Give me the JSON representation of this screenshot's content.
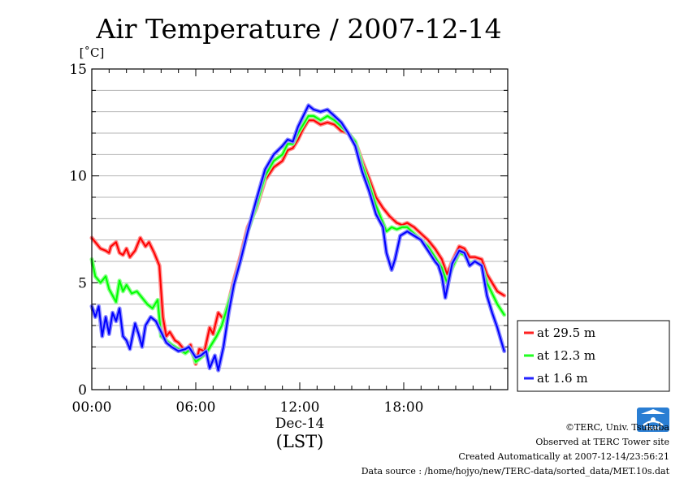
{
  "chart_data": {
    "type": "line",
    "title": "Air Temperature / 2007-12-14",
    "ylabel": "[˚C]",
    "xlabel": "(LST)",
    "xdate_label": "Dec-14",
    "ylim": [
      0,
      15
    ],
    "xlim": [
      0,
      24
    ],
    "yticks": [
      "0",
      "5",
      "10",
      "15"
    ],
    "xticks": [
      {
        "value": 0,
        "label": "00:00"
      },
      {
        "value": 6,
        "label": "06:00"
      },
      {
        "value": 12,
        "label": "12:00"
      },
      {
        "value": 18,
        "label": "18:00"
      }
    ],
    "grid": true,
    "legend_position": "right",
    "series": [
      {
        "name": "at 29.5 m",
        "color": "#ff0000",
        "points": [
          [
            0,
            7.1
          ],
          [
            0.5,
            6.6
          ],
          [
            0.8,
            6.5
          ],
          [
            1.0,
            6.4
          ],
          [
            1.1,
            6.7
          ],
          [
            1.4,
            6.9
          ],
          [
            1.6,
            6.4
          ],
          [
            1.8,
            6.3
          ],
          [
            2.0,
            6.6
          ],
          [
            2.2,
            6.2
          ],
          [
            2.5,
            6.5
          ],
          [
            2.8,
            7.1
          ],
          [
            3.1,
            6.7
          ],
          [
            3.3,
            6.9
          ],
          [
            3.6,
            6.4
          ],
          [
            3.9,
            5.8
          ],
          [
            4.1,
            3.4
          ],
          [
            4.3,
            2.5
          ],
          [
            4.5,
            2.7
          ],
          [
            4.8,
            2.3
          ],
          [
            5.0,
            2.2
          ],
          [
            5.4,
            1.8
          ],
          [
            5.7,
            2.1
          ],
          [
            6.0,
            1.2
          ],
          [
            6.2,
            1.9
          ],
          [
            6.5,
            1.8
          ],
          [
            6.8,
            2.9
          ],
          [
            7.0,
            2.6
          ],
          [
            7.3,
            3.6
          ],
          [
            7.6,
            3.3
          ],
          [
            7.9,
            4.1
          ],
          [
            8.2,
            5.1
          ],
          [
            8.6,
            6.3
          ],
          [
            9.0,
            7.6
          ],
          [
            9.5,
            8.5
          ],
          [
            10.0,
            9.8
          ],
          [
            10.5,
            10.4
          ],
          [
            11.0,
            10.7
          ],
          [
            11.3,
            11.2
          ],
          [
            11.6,
            11.3
          ],
          [
            11.9,
            11.7
          ],
          [
            12.2,
            12.2
          ],
          [
            12.5,
            12.6
          ],
          [
            12.8,
            12.6
          ],
          [
            13.2,
            12.4
          ],
          [
            13.6,
            12.5
          ],
          [
            14.0,
            12.4
          ],
          [
            14.4,
            12.1
          ],
          [
            14.8,
            12.0
          ],
          [
            15.2,
            11.6
          ],
          [
            15.6,
            10.7
          ],
          [
            16.0,
            9.9
          ],
          [
            16.4,
            9.0
          ],
          [
            16.8,
            8.5
          ],
          [
            17.2,
            8.1
          ],
          [
            17.6,
            7.8
          ],
          [
            17.9,
            7.7
          ],
          [
            18.2,
            7.8
          ],
          [
            18.6,
            7.6
          ],
          [
            19.0,
            7.3
          ],
          [
            19.4,
            7.0
          ],
          [
            19.8,
            6.6
          ],
          [
            20.2,
            6.1
          ],
          [
            20.5,
            5.4
          ],
          [
            20.8,
            6.0
          ],
          [
            21.2,
            6.7
          ],
          [
            21.5,
            6.6
          ],
          [
            21.8,
            6.2
          ],
          [
            22.1,
            6.2
          ],
          [
            22.5,
            6.1
          ],
          [
            22.8,
            5.4
          ],
          [
            23.1,
            5.0
          ],
          [
            23.4,
            4.6
          ],
          [
            23.8,
            4.4
          ]
        ]
      },
      {
        "name": "at 12.3 m",
        "color": "#00ff00",
        "points": [
          [
            0,
            6.1
          ],
          [
            0.2,
            5.3
          ],
          [
            0.5,
            5.0
          ],
          [
            0.8,
            5.3
          ],
          [
            1.0,
            4.7
          ],
          [
            1.2,
            4.4
          ],
          [
            1.4,
            4.1
          ],
          [
            1.6,
            5.1
          ],
          [
            1.8,
            4.6
          ],
          [
            2.0,
            4.9
          ],
          [
            2.3,
            4.5
          ],
          [
            2.6,
            4.6
          ],
          [
            2.9,
            4.3
          ],
          [
            3.2,
            4.0
          ],
          [
            3.5,
            3.8
          ],
          [
            3.8,
            4.2
          ],
          [
            4.0,
            2.5
          ],
          [
            4.3,
            2.3
          ],
          [
            4.6,
            2.1
          ],
          [
            5.0,
            1.9
          ],
          [
            5.4,
            1.7
          ],
          [
            5.7,
            1.9
          ],
          [
            6.0,
            1.3
          ],
          [
            6.3,
            1.5
          ],
          [
            6.6,
            1.7
          ],
          [
            6.9,
            2.1
          ],
          [
            7.2,
            2.5
          ],
          [
            7.5,
            3.0
          ],
          [
            7.8,
            3.8
          ],
          [
            8.2,
            4.9
          ],
          [
            8.6,
            6.1
          ],
          [
            9.0,
            7.4
          ],
          [
            9.5,
            8.6
          ],
          [
            10.0,
            10.0
          ],
          [
            10.5,
            10.7
          ],
          [
            11.0,
            11.0
          ],
          [
            11.3,
            11.5
          ],
          [
            11.6,
            11.5
          ],
          [
            11.9,
            12.0
          ],
          [
            12.2,
            12.4
          ],
          [
            12.5,
            12.8
          ],
          [
            12.8,
            12.8
          ],
          [
            13.2,
            12.6
          ],
          [
            13.6,
            12.8
          ],
          [
            14.0,
            12.6
          ],
          [
            14.4,
            12.3
          ],
          [
            14.8,
            12.0
          ],
          [
            15.2,
            11.6
          ],
          [
            15.6,
            10.5
          ],
          [
            16.0,
            9.6
          ],
          [
            16.4,
            8.6
          ],
          [
            16.8,
            7.8
          ],
          [
            17.0,
            7.4
          ],
          [
            17.3,
            7.6
          ],
          [
            17.6,
            7.5
          ],
          [
            17.9,
            7.6
          ],
          [
            18.2,
            7.6
          ],
          [
            18.6,
            7.3
          ],
          [
            19.0,
            7.0
          ],
          [
            19.4,
            6.7
          ],
          [
            19.8,
            6.2
          ],
          [
            20.2,
            5.7
          ],
          [
            20.5,
            5.0
          ],
          [
            20.8,
            5.7
          ],
          [
            21.2,
            6.4
          ],
          [
            21.5,
            6.3
          ],
          [
            21.8,
            5.9
          ],
          [
            22.1,
            6.0
          ],
          [
            22.5,
            5.8
          ],
          [
            22.8,
            5.0
          ],
          [
            23.1,
            4.5
          ],
          [
            23.4,
            4.0
          ],
          [
            23.8,
            3.5
          ]
        ]
      },
      {
        "name": "at 1.6 m",
        "color": "#0000ff",
        "points": [
          [
            0,
            3.9
          ],
          [
            0.2,
            3.4
          ],
          [
            0.4,
            3.9
          ],
          [
            0.6,
            2.5
          ],
          [
            0.8,
            3.4
          ],
          [
            1.0,
            2.6
          ],
          [
            1.2,
            3.6
          ],
          [
            1.4,
            3.2
          ],
          [
            1.6,
            3.8
          ],
          [
            1.8,
            2.5
          ],
          [
            2.0,
            2.3
          ],
          [
            2.2,
            1.9
          ],
          [
            2.5,
            3.1
          ],
          [
            2.7,
            2.6
          ],
          [
            2.9,
            2.0
          ],
          [
            3.1,
            3.0
          ],
          [
            3.4,
            3.4
          ],
          [
            3.7,
            3.2
          ],
          [
            4.0,
            2.7
          ],
          [
            4.3,
            2.2
          ],
          [
            4.6,
            2.0
          ],
          [
            5.0,
            1.8
          ],
          [
            5.4,
            1.9
          ],
          [
            5.6,
            2.0
          ],
          [
            6.0,
            1.5
          ],
          [
            6.3,
            1.6
          ],
          [
            6.6,
            1.8
          ],
          [
            6.8,
            1.0
          ],
          [
            7.1,
            1.6
          ],
          [
            7.3,
            0.9
          ],
          [
            7.6,
            2.0
          ],
          [
            7.9,
            3.6
          ],
          [
            8.2,
            4.9
          ],
          [
            8.6,
            6.1
          ],
          [
            9.0,
            7.4
          ],
          [
            9.5,
            8.9
          ],
          [
            10.0,
            10.3
          ],
          [
            10.5,
            11.0
          ],
          [
            11.0,
            11.4
          ],
          [
            11.3,
            11.7
          ],
          [
            11.6,
            11.6
          ],
          [
            11.9,
            12.3
          ],
          [
            12.2,
            12.8
          ],
          [
            12.5,
            13.3
          ],
          [
            12.8,
            13.1
          ],
          [
            13.2,
            13.0
          ],
          [
            13.6,
            13.1
          ],
          [
            14.0,
            12.8
          ],
          [
            14.4,
            12.5
          ],
          [
            14.8,
            12.0
          ],
          [
            15.2,
            11.4
          ],
          [
            15.6,
            10.2
          ],
          [
            16.0,
            9.3
          ],
          [
            16.4,
            8.2
          ],
          [
            16.8,
            7.6
          ],
          [
            17.0,
            6.4
          ],
          [
            17.3,
            5.6
          ],
          [
            17.5,
            6.1
          ],
          [
            17.8,
            7.2
          ],
          [
            18.2,
            7.4
          ],
          [
            18.6,
            7.2
          ],
          [
            19.0,
            7.0
          ],
          [
            19.4,
            6.5
          ],
          [
            19.8,
            6.0
          ],
          [
            20.0,
            5.8
          ],
          [
            20.2,
            5.3
          ],
          [
            20.4,
            4.3
          ],
          [
            20.8,
            5.9
          ],
          [
            21.2,
            6.5
          ],
          [
            21.5,
            6.4
          ],
          [
            21.8,
            5.8
          ],
          [
            22.1,
            6.0
          ],
          [
            22.5,
            5.8
          ],
          [
            22.8,
            4.4
          ],
          [
            23.1,
            3.6
          ],
          [
            23.4,
            2.9
          ],
          [
            23.8,
            1.8
          ]
        ]
      }
    ]
  },
  "credits": {
    "copyright": "©TERC, Univ. Tsukuba",
    "observed": "Observed at TERC Tower site",
    "created": "Created Automatically at 2007-12-14/23:56:21",
    "source": "Data source : /home/hojyo/new/TERC-data/sorted_data/MET.10s.dat",
    "logo_text": "TERC"
  }
}
